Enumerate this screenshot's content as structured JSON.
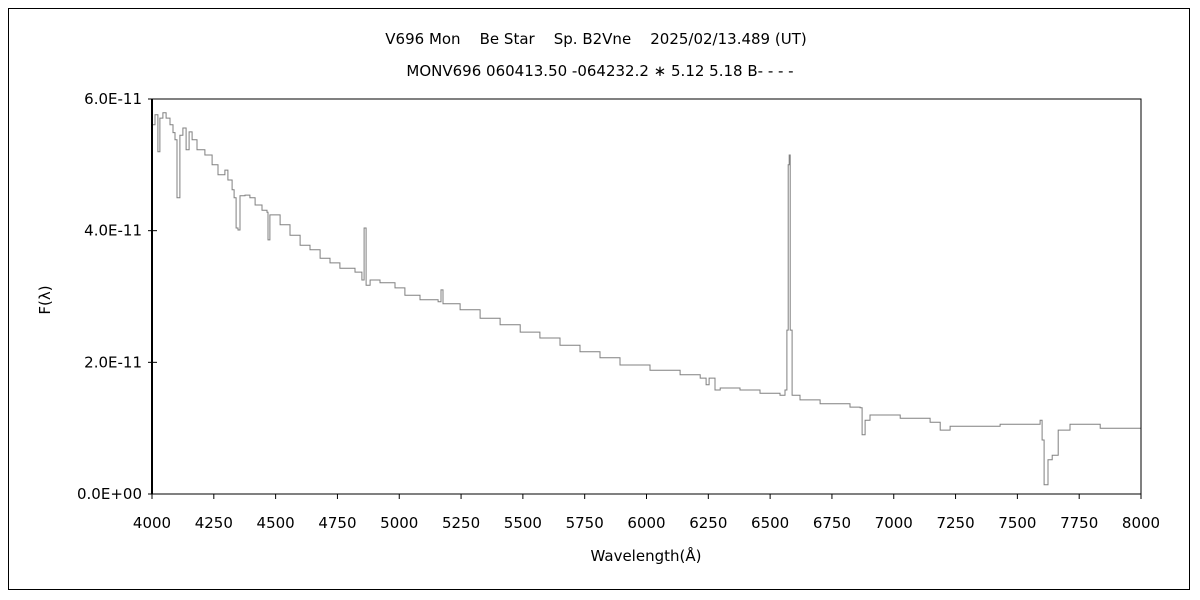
{
  "chart_data": {
    "type": "line",
    "title": "V696 Mon    Be Star    Sp. B2Vne    2025/02/13.489 (UT)",
    "subtitle": "MONV696 060413.50 -064232.2 ∗ 5.12 5.18 B- - - -",
    "xlabel": "Wavelength(Å)",
    "ylabel": "F(λ)",
    "xlim": [
      4000,
      8000
    ],
    "ylim": [
      0,
      6e-11
    ],
    "xticks": [
      4000,
      4250,
      4500,
      4750,
      5000,
      5250,
      5500,
      5750,
      6000,
      6250,
      6500,
      6750,
      7000,
      7250,
      7500,
      7750,
      8000
    ],
    "xtick_labels": [
      "4000",
      "4250",
      "4500",
      "4750",
      "5000",
      "5250",
      "5500",
      "5750",
      "6000",
      "6250",
      "6500",
      "6750",
      "7000",
      "7250",
      "7500",
      "7750",
      "8000"
    ],
    "yticks": [
      0,
      2e-11,
      4e-11,
      6e-11
    ],
    "ytick_labels": [
      "0.0E+00",
      "2.0E-11",
      "4.0E-11",
      "6.0E-11"
    ],
    "grid": false,
    "line_color": "#808080",
    "flux_unit_scale": 1e-11,
    "series": [
      {
        "name": "spectrum",
        "points": [
          [
            4000,
            5.61
          ],
          [
            4012,
            5.76
          ],
          [
            4024,
            5.2
          ],
          [
            4032,
            5.71
          ],
          [
            4044,
            5.79
          ],
          [
            4057,
            5.71
          ],
          [
            4073,
            5.61
          ],
          [
            4085,
            5.49
          ],
          [
            4093,
            5.38
          ],
          [
            4101,
            4.5
          ],
          [
            4113,
            5.45
          ],
          [
            4125,
            5.56
          ],
          [
            4138,
            5.23
          ],
          [
            4150,
            5.5
          ],
          [
            4162,
            5.38
          ],
          [
            4182,
            5.23
          ],
          [
            4214,
            5.15
          ],
          [
            4243,
            5.0
          ],
          [
            4267,
            4.85
          ],
          [
            4295,
            4.92
          ],
          [
            4307,
            4.77
          ],
          [
            4324,
            4.62
          ],
          [
            4332,
            4.5
          ],
          [
            4340,
            4.04
          ],
          [
            4348,
            4.01
          ],
          [
            4356,
            4.53
          ],
          [
            4376,
            4.54
          ],
          [
            4396,
            4.5
          ],
          [
            4417,
            4.39
          ],
          [
            4445,
            4.31
          ],
          [
            4465,
            4.28
          ],
          [
            4469,
            3.86
          ],
          [
            4477,
            4.24
          ],
          [
            4518,
            4.09
          ],
          [
            4558,
            3.93
          ],
          [
            4599,
            3.78
          ],
          [
            4639,
            3.71
          ],
          [
            4680,
            3.58
          ],
          [
            4720,
            3.51
          ],
          [
            4760,
            3.43
          ],
          [
            4821,
            3.37
          ],
          [
            4849,
            3.25
          ],
          [
            4858,
            4.04
          ],
          [
            4866,
            3.17
          ],
          [
            4882,
            3.25
          ],
          [
            4922,
            3.21
          ],
          [
            4983,
            3.13
          ],
          [
            5023,
            3.02
          ],
          [
            5084,
            2.95
          ],
          [
            5157,
            2.92
          ],
          [
            5169,
            3.1
          ],
          [
            5177,
            2.89
          ],
          [
            5246,
            2.8
          ],
          [
            5327,
            2.67
          ],
          [
            5408,
            2.57
          ],
          [
            5489,
            2.46
          ],
          [
            5569,
            2.37
          ],
          [
            5650,
            2.26
          ],
          [
            5731,
            2.16
          ],
          [
            5812,
            2.07
          ],
          [
            5893,
            1.96
          ],
          [
            6014,
            1.88
          ],
          [
            6136,
            1.81
          ],
          [
            6217,
            1.76
          ],
          [
            6241,
            1.66
          ],
          [
            6253,
            1.76
          ],
          [
            6277,
            1.58
          ],
          [
            6298,
            1.61
          ],
          [
            6378,
            1.58
          ],
          [
            6459,
            1.53
          ],
          [
            6540,
            1.5
          ],
          [
            6560,
            1.58
          ],
          [
            6568,
            2.49
          ],
          [
            6573,
            5.0
          ],
          [
            6577,
            5.15
          ],
          [
            6581,
            2.49
          ],
          [
            6589,
            1.5
          ],
          [
            6621,
            1.43
          ],
          [
            6702,
            1.37
          ],
          [
            6823,
            1.32
          ],
          [
            6864,
            1.31
          ],
          [
            6872,
            0.9
          ],
          [
            6884,
            1.12
          ],
          [
            6904,
            1.2
          ],
          [
            7026,
            1.15
          ],
          [
            7147,
            1.09
          ],
          [
            7188,
            0.97
          ],
          [
            7228,
            1.03
          ],
          [
            7430,
            1.06
          ],
          [
            7592,
            1.12
          ],
          [
            7600,
            0.82
          ],
          [
            7608,
            0.14
          ],
          [
            7616,
            0.14
          ],
          [
            7624,
            0.52
          ],
          [
            7641,
            0.59
          ],
          [
            7665,
            0.97
          ],
          [
            7713,
            1.06
          ],
          [
            7835,
            1.0
          ],
          [
            8000,
            0.94
          ]
        ]
      }
    ]
  }
}
